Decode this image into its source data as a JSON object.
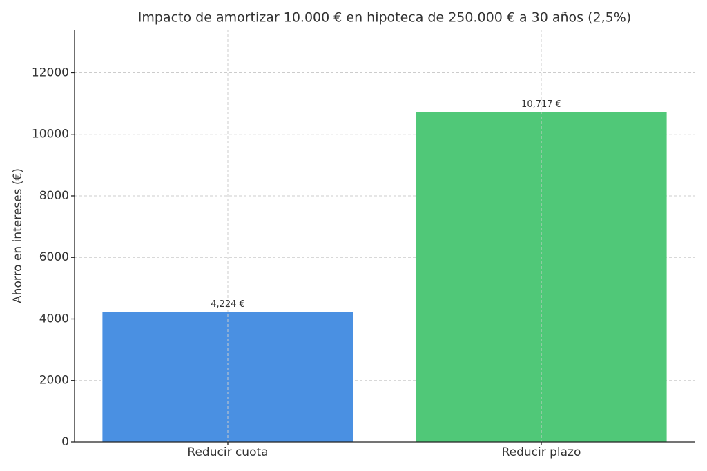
{
  "chart_data": {
    "type": "bar",
    "title": "Impacto de amortizar 10.000 € en hipoteca de 250.000 € a 30 años (2,5%)",
    "ylabel": "Ahorro en intereses (€)",
    "categories": [
      "Reducir cuota",
      "Reducir plazo"
    ],
    "values": [
      4224,
      10717
    ],
    "value_labels": [
      "4,224 €",
      "10,717 €"
    ],
    "colors": [
      "#4a90e2",
      "#50c878"
    ],
    "ylim": [
      0,
      13400
    ],
    "yticks": [
      0,
      2000,
      4000,
      6000,
      8000,
      10000,
      12000
    ],
    "grid": true
  }
}
